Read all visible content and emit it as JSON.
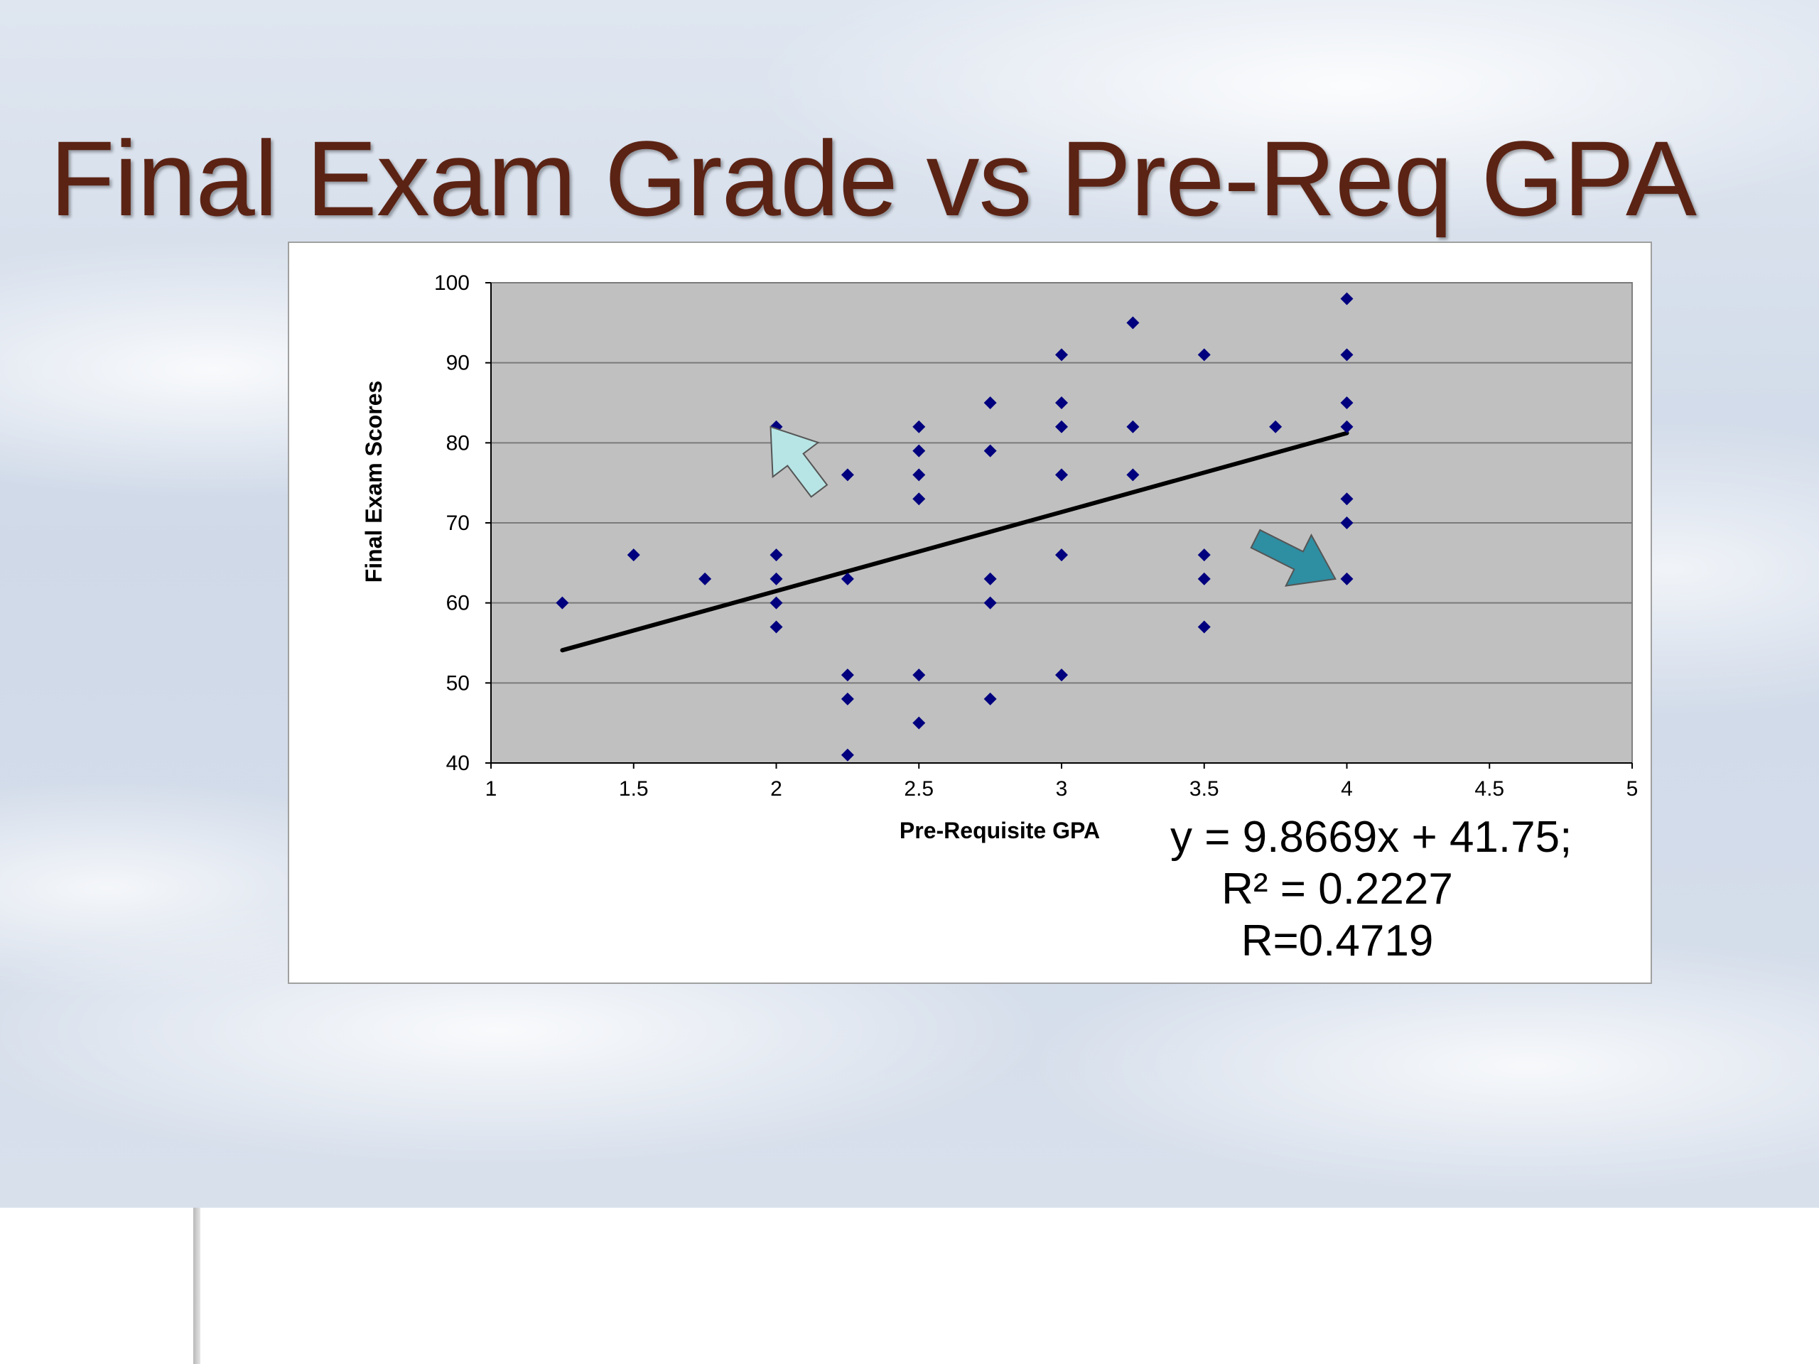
{
  "slide": {
    "title": "Final Exam Grade vs Pre-Req GPA"
  },
  "equation": {
    "line1": "y = 9.8669x + 41.75;",
    "line2": "R² = 0.2227",
    "line3": "R=0.4719"
  },
  "chart_data": {
    "type": "scatter",
    "xlabel": "Pre-Requisite GPA",
    "ylabel": "Final Exam Scores",
    "xlim": [
      1,
      5
    ],
    "ylim": [
      40,
      100
    ],
    "xticks": [
      "1",
      "1.5",
      "2",
      "2.5",
      "3",
      "3.5",
      "4",
      "4.5",
      "5"
    ],
    "yticks": [
      "40",
      "50",
      "60",
      "70",
      "80",
      "90",
      "100"
    ],
    "grid": "horizontal",
    "background": "#c0c0c0",
    "marker_color": "#00007f",
    "points": [
      [
        1.25,
        60
      ],
      [
        1.5,
        66
      ],
      [
        1.75,
        63
      ],
      [
        2,
        82
      ],
      [
        2,
        66
      ],
      [
        2,
        63
      ],
      [
        2,
        60
      ],
      [
        2,
        57
      ],
      [
        2.25,
        76
      ],
      [
        2.25,
        63
      ],
      [
        2.25,
        51
      ],
      [
        2.25,
        48
      ],
      [
        2.25,
        41
      ],
      [
        2.5,
        82
      ],
      [
        2.5,
        79
      ],
      [
        2.5,
        76
      ],
      [
        2.5,
        73
      ],
      [
        2.5,
        51
      ],
      [
        2.5,
        45
      ],
      [
        2.75,
        85
      ],
      [
        2.75,
        79
      ],
      [
        2.75,
        63
      ],
      [
        2.75,
        60
      ],
      [
        2.75,
        48
      ],
      [
        3,
        91
      ],
      [
        3,
        85
      ],
      [
        3,
        82
      ],
      [
        3,
        76
      ],
      [
        3,
        66
      ],
      [
        3,
        51
      ],
      [
        3.25,
        95
      ],
      [
        3.25,
        82
      ],
      [
        3.25,
        76
      ],
      [
        3.5,
        91
      ],
      [
        3.5,
        66
      ],
      [
        3.5,
        63
      ],
      [
        3.5,
        57
      ],
      [
        3.75,
        82
      ],
      [
        4,
        98
      ],
      [
        4,
        91
      ],
      [
        4,
        85
      ],
      [
        4,
        82
      ],
      [
        4,
        73
      ],
      [
        4,
        70
      ],
      [
        4,
        63
      ]
    ],
    "trendline": {
      "slope": 9.8669,
      "intercept": 41.75,
      "x_range": [
        1.25,
        4
      ]
    },
    "annotations": [
      {
        "type": "arrow",
        "color": "#b7e5e5",
        "tail": [
          2.15,
          74
        ],
        "head": [
          1.98,
          82
        ]
      },
      {
        "type": "arrow",
        "color": "#2e8ea2",
        "tail": [
          3.68,
          68
        ],
        "head": [
          3.96,
          63
        ]
      }
    ]
  }
}
